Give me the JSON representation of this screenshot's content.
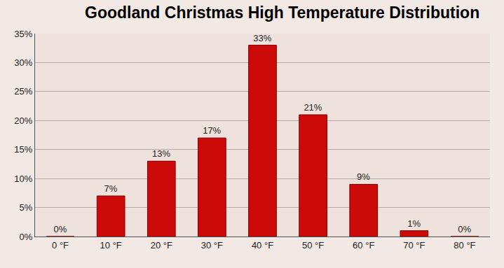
{
  "chart_data": {
    "type": "bar",
    "title": "Goodland Christmas High Temperature Distribution",
    "categories": [
      "0 °F",
      "10 °F",
      "20 °F",
      "30 °F",
      "40 °F",
      "50 °F",
      "60 °F",
      "70 °F",
      "80 °F"
    ],
    "values": [
      0,
      7,
      13,
      17,
      33,
      21,
      9,
      1,
      0
    ],
    "value_labels": [
      "0%",
      "7%",
      "13%",
      "17%",
      "33%",
      "21%",
      "9%",
      "1%",
      "0%"
    ],
    "color": "#cc0a0a",
    "ylim": [
      0,
      35
    ],
    "yticks": [
      {
        "value": 0,
        "label": "0%"
      },
      {
        "value": 5,
        "label": "5%"
      },
      {
        "value": 10,
        "label": "10%"
      },
      {
        "value": 15,
        "label": "15%"
      },
      {
        "value": 20,
        "label": "20%"
      },
      {
        "value": 25,
        "label": "25%"
      },
      {
        "value": 30,
        "label": "30%"
      },
      {
        "value": 35,
        "label": "35%"
      }
    ],
    "grid": true,
    "data_labels": true
  }
}
